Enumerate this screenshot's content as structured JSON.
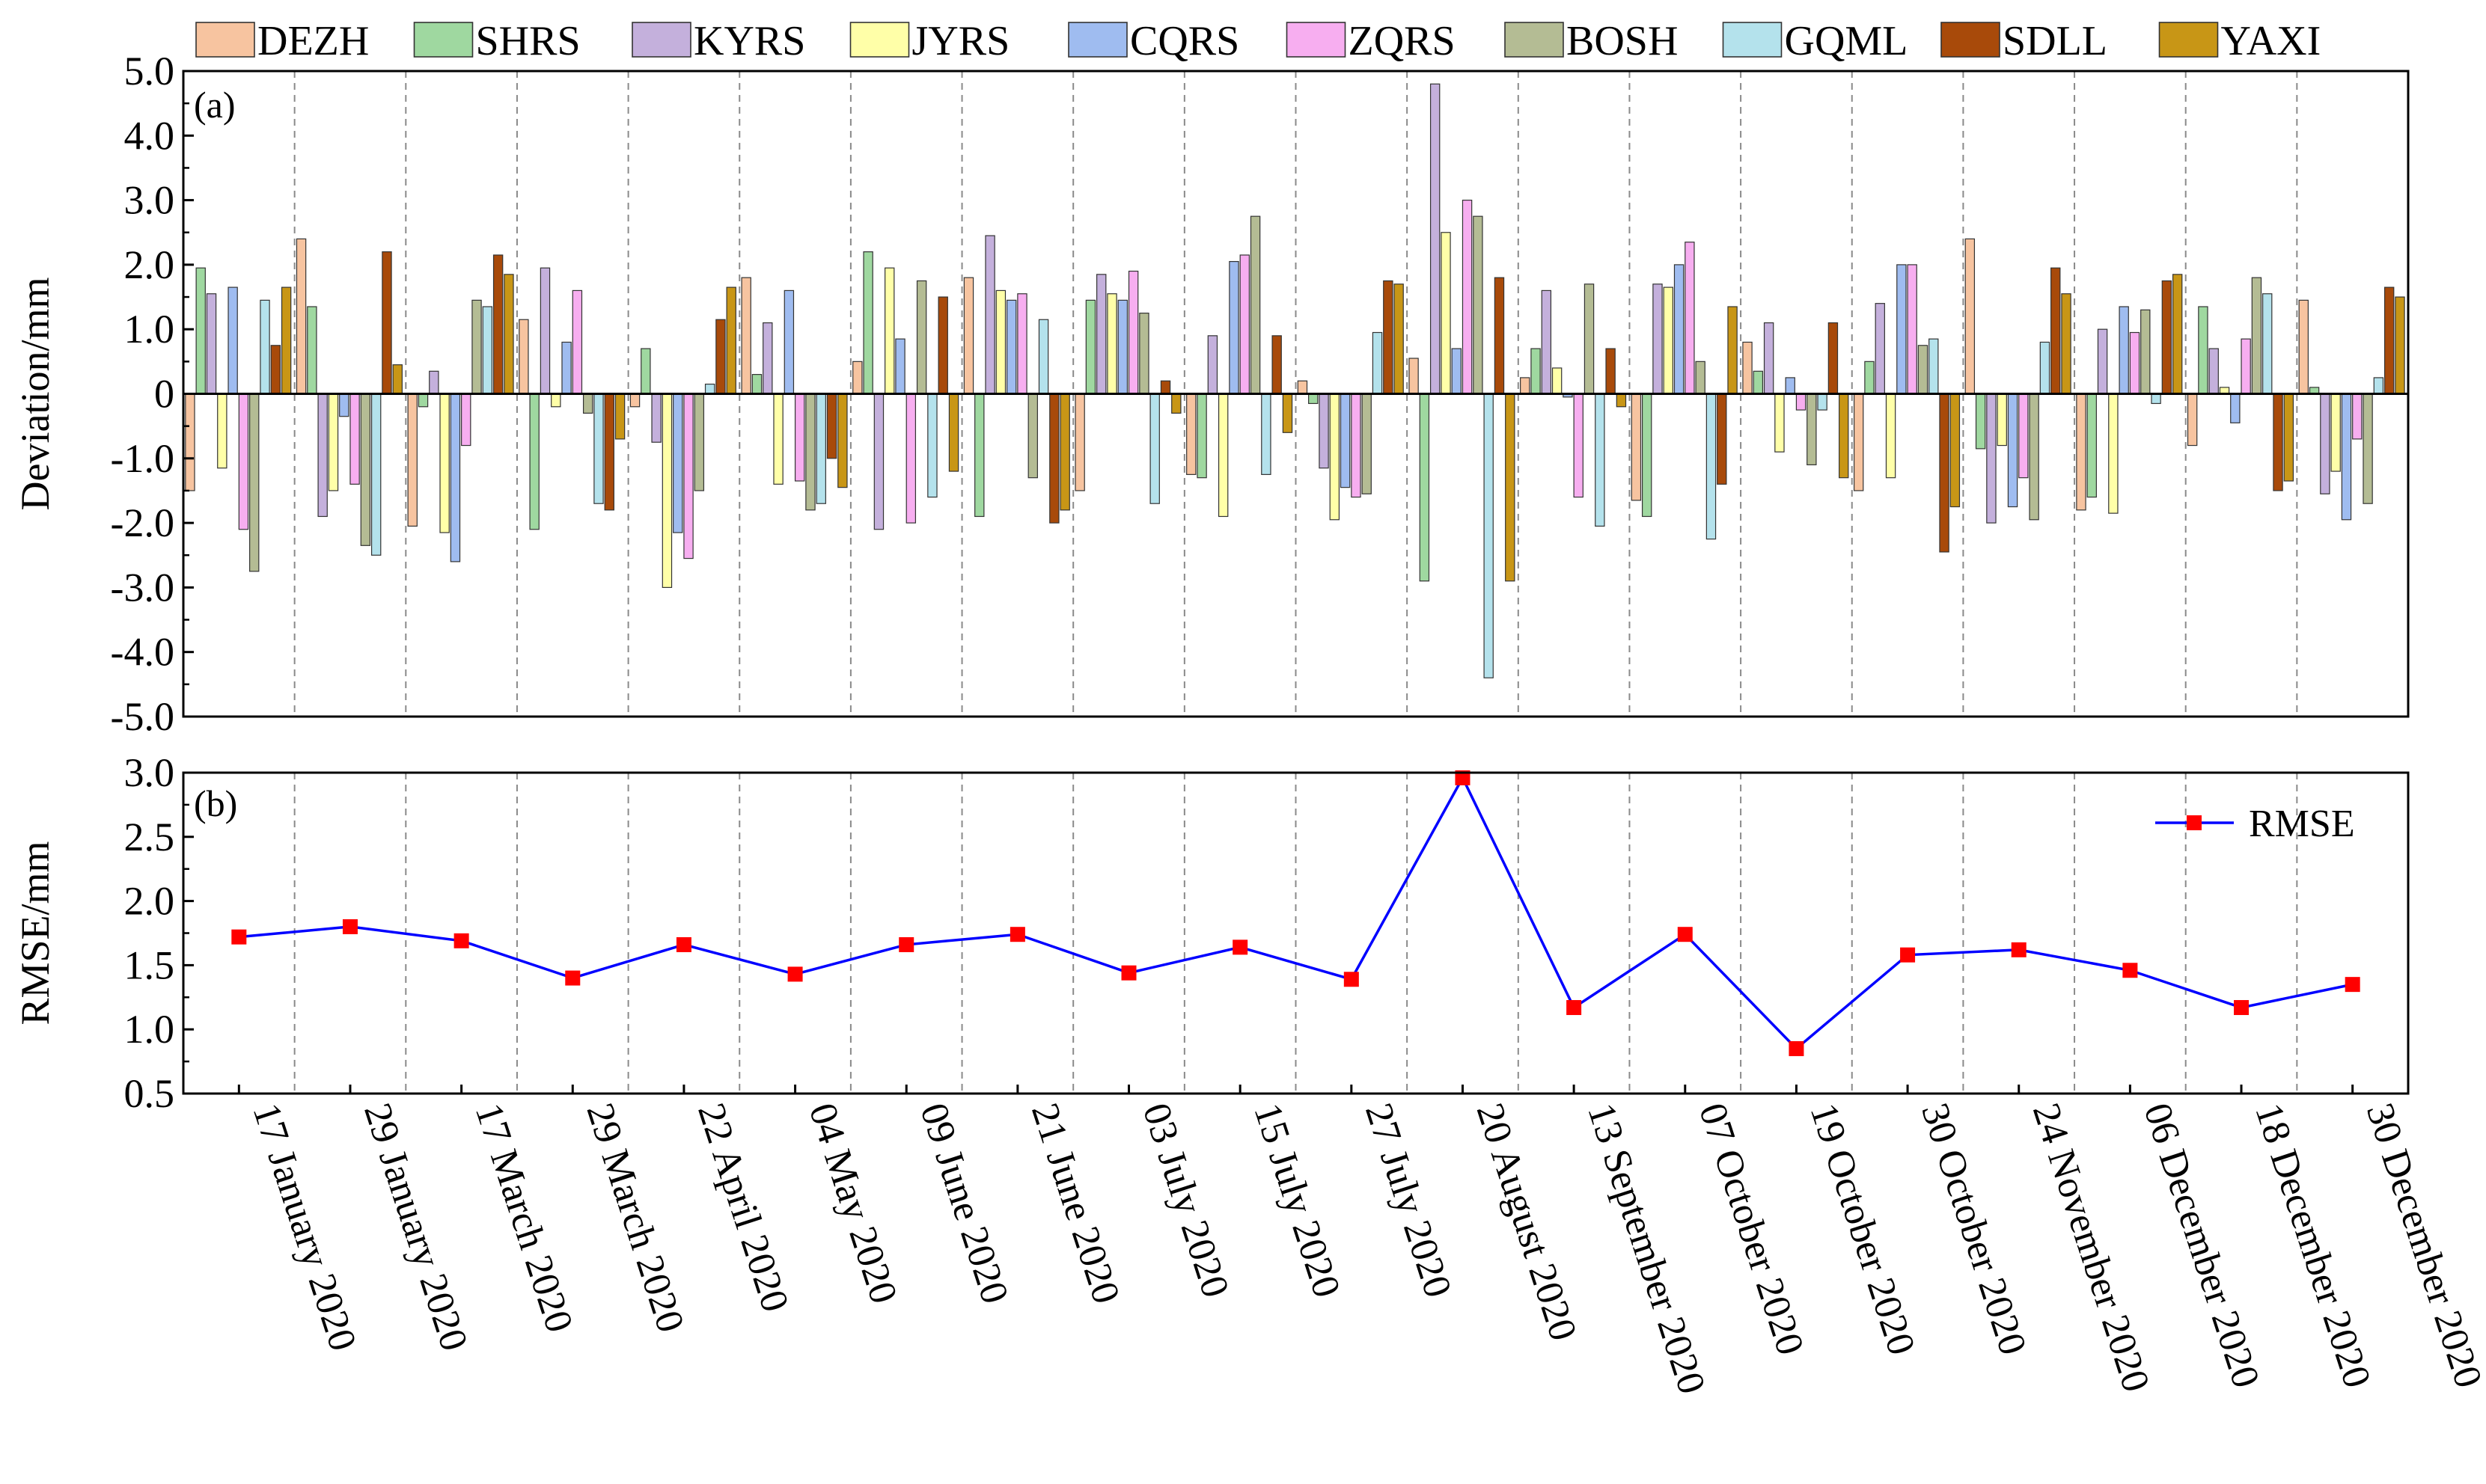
{
  "chart_data": [
    {
      "type": "bar",
      "panel_label": "(a)",
      "ylabel": "Deviation/mm",
      "ylim": [
        -5.0,
        5.0
      ],
      "yticks": [
        "5.0",
        "4.0",
        "3.0",
        "2.0",
        "1.0",
        "0",
        "-1.0",
        "-2.0",
        "-3.0",
        "-4.0",
        "-5.0"
      ],
      "grid": "vertical dashed separators between dates",
      "legend_position": "top",
      "categories": [
        "17 January 2020",
        "29 January 2020",
        "17 March 2020",
        "29 March 2020",
        "22 April 2020",
        "04 May 2020",
        "09 June 2020",
        "21 June 2020",
        "03 July 2020",
        "15 July 2020",
        "27 July 2020",
        "20 August 2020",
        "13 September 2020",
        "07 October 2020",
        "19 October 2020",
        "30 October 2020",
        "24 November 2020",
        "06 December 2020",
        "18 December 2020",
        "30 December 2020"
      ],
      "series": [
        {
          "name": "DEZH",
          "color": "#f7c4a0",
          "values": [
            -1.5,
            2.4,
            -2.05,
            1.15,
            -0.2,
            1.8,
            0.5,
            1.8,
            -1.5,
            -1.25,
            0.2,
            0.55,
            0.25,
            -1.65,
            0.8,
            -1.5,
            2.4,
            -1.8,
            -0.8,
            1.45
          ]
        },
        {
          "name": "SHRS",
          "color": "#9fd8a0",
          "values": [
            1.95,
            1.35,
            -0.2,
            -2.1,
            0.7,
            0.3,
            2.2,
            -1.9,
            1.45,
            -1.3,
            -0.15,
            -2.9,
            0.7,
            -1.9,
            0.35,
            0.5,
            -0.85,
            -1.6,
            1.35,
            0.1
          ]
        },
        {
          "name": "KYRS",
          "color": "#c4b0dc",
          "values": [
            1.55,
            -1.9,
            0.35,
            1.95,
            -0.75,
            1.1,
            -2.1,
            2.45,
            1.85,
            0.9,
            -1.15,
            4.8,
            1.6,
            1.7,
            1.1,
            1.4,
            -2.0,
            1.0,
            0.7,
            -1.55
          ]
        },
        {
          "name": "JYRS",
          "color": "#ffffa8",
          "values": [
            -1.15,
            -1.5,
            -2.15,
            -0.2,
            -3.0,
            -1.4,
            1.95,
            1.6,
            1.55,
            -1.9,
            -1.95,
            2.5,
            0.4,
            1.65,
            -0.9,
            -1.3,
            -0.8,
            -1.85,
            0.1,
            -1.2
          ]
        },
        {
          "name": "CQRS",
          "color": "#9fbcf0",
          "values": [
            1.65,
            -0.35,
            -2.6,
            0.8,
            -2.15,
            1.6,
            0.85,
            1.45,
            1.45,
            2.05,
            -1.45,
            0.7,
            -0.05,
            2.0,
            0.25,
            2.0,
            -1.75,
            1.35,
            -0.45,
            -1.95
          ]
        },
        {
          "name": "ZQRS",
          "color": "#f7aef0",
          "values": [
            -2.1,
            -1.4,
            -0.8,
            1.6,
            -2.55,
            -1.35,
            -2.0,
            1.55,
            1.9,
            2.15,
            -1.6,
            3.0,
            -1.6,
            2.35,
            -0.25,
            2.0,
            -1.3,
            0.95,
            0.85,
            -0.7
          ]
        },
        {
          "name": "BOSH",
          "color": "#b4bc94",
          "values": [
            -2.75,
            -2.35,
            1.45,
            -0.3,
            -1.5,
            -1.8,
            1.75,
            -1.3,
            1.25,
            2.75,
            -1.55,
            2.75,
            1.7,
            0.5,
            -1.1,
            0.75,
            -1.95,
            1.3,
            1.8,
            -1.7
          ]
        },
        {
          "name": "GQML",
          "color": "#b4e2ec",
          "values": [
            1.45,
            -2.5,
            1.35,
            -1.7,
            0.15,
            -1.7,
            -1.6,
            1.15,
            -1.7,
            -1.25,
            0.95,
            -4.4,
            -2.05,
            -2.25,
            -0.25,
            0.85,
            0.8,
            -0.15,
            1.55,
            0.25
          ]
        },
        {
          "name": "SDLL",
          "color": "#a84a0a",
          "values": [
            0.75,
            2.2,
            2.15,
            -1.8,
            1.15,
            -1.0,
            1.5,
            -2.0,
            0.2,
            0.9,
            1.75,
            1.8,
            0.7,
            -1.4,
            1.1,
            -2.45,
            1.95,
            1.75,
            -1.5,
            1.65
          ]
        },
        {
          "name": "YAXI",
          "color": "#c89616",
          "values": [
            1.65,
            0.45,
            1.85,
            -0.7,
            1.65,
            -1.45,
            -1.2,
            -1.8,
            -0.3,
            -0.6,
            1.7,
            -2.9,
            -0.2,
            1.35,
            -1.3,
            -1.75,
            1.55,
            1.85,
            -1.35,
            1.5
          ]
        }
      ]
    },
    {
      "type": "line",
      "panel_label": "(b)",
      "ylabel": "RMSE/mm",
      "ylim": [
        0.5,
        3.0
      ],
      "yticks": [
        "3.0",
        "2.5",
        "2.0",
        "1.5",
        "1.0",
        "0.5"
      ],
      "grid": "vertical dashed separators between dates",
      "legend_position": "top-right",
      "line_color": "#0000ff",
      "marker_color": "#ff0000",
      "series": [
        {
          "name": "RMSE",
          "values": [
            1.72,
            1.8,
            1.69,
            1.4,
            1.66,
            1.43,
            1.66,
            1.74,
            1.44,
            1.64,
            1.39,
            2.96,
            1.17,
            1.74,
            0.85,
            1.58,
            1.62,
            1.46,
            1.17,
            1.35
          ]
        }
      ]
    }
  ]
}
